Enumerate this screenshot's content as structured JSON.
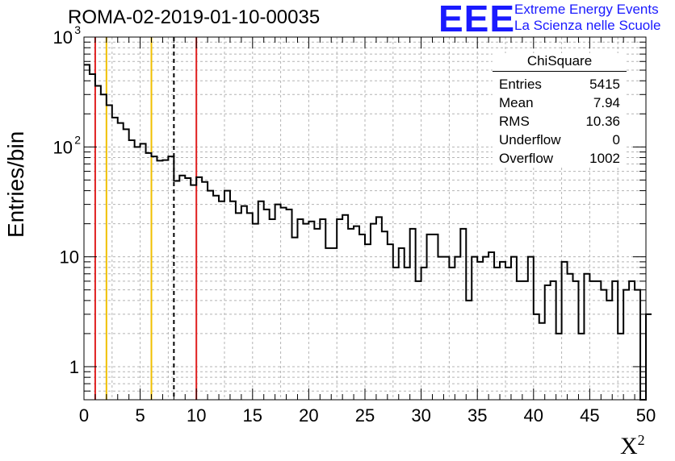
{
  "header": {
    "title": "ROMA-02-2019-01-10-00035",
    "logo_text": "EEE",
    "org_line1": "Extreme Energy Events",
    "org_line2": "La Scienza nelle Scuole"
  },
  "stats_box": {
    "name": "ChiSquare",
    "rows": [
      {
        "label": "Entries",
        "value": "5415"
      },
      {
        "label": "Mean",
        "value": "7.94"
      },
      {
        "label": "RMS",
        "value": "10.36"
      },
      {
        "label": "Underflow",
        "value": "0"
      },
      {
        "label": "Overflow",
        "value": "1002"
      }
    ]
  },
  "chart_data": {
    "type": "bar",
    "histogram": true,
    "title": "ROMA-02-2019-01-10-00035",
    "xlabel": "X",
    "xlabel_superscript": "2",
    "ylabel": "Entries/bin",
    "xlim": [
      0,
      50
    ],
    "ylim": [
      0.5,
      1000
    ],
    "yscale": "log",
    "bin_width": 0.5,
    "grid": true,
    "x_ticks": [
      "0",
      "5",
      "10",
      "15",
      "20",
      "25",
      "30",
      "35",
      "40",
      "45",
      "50"
    ],
    "y_ticks": [
      {
        "value": 1,
        "label": "1"
      },
      {
        "value": 10,
        "label": "10"
      },
      {
        "value": 100,
        "label": "10",
        "sup": "2"
      },
      {
        "value": 1000,
        "label": "10",
        "sup": "3"
      }
    ],
    "values": [
      560,
      460,
      360,
      300,
      240,
      185,
      165,
      145,
      115,
      100,
      107,
      88,
      82,
      75,
      76,
      82,
      49,
      55,
      52,
      45,
      53,
      48,
      40,
      36,
      32,
      40,
      32,
      25,
      29,
      25,
      20,
      32,
      27,
      22,
      30,
      28,
      27,
      15,
      22,
      20,
      21,
      18,
      22,
      12,
      12,
      22,
      24,
      18,
      19,
      16,
      13,
      20,
      23,
      17,
      13,
      8,
      12,
      8,
      18,
      6,
      8,
      16,
      16,
      10,
      10,
      8,
      10,
      18,
      4,
      10,
      9,
      10,
      11,
      8,
      9,
      8,
      10,
      6,
      6,
      10,
      3,
      2.5,
      5.5,
      6,
      2,
      9,
      7,
      6,
      2,
      7,
      6,
      6,
      5,
      4,
      6,
      2,
      5,
      6,
      5,
      0,
      3
    ],
    "vertical_lines": [
      {
        "x": 1,
        "color": "#e02020",
        "style": "solid"
      },
      {
        "x": 2,
        "color": "#f0c000",
        "style": "solid"
      },
      {
        "x": 6,
        "color": "#f0c000",
        "style": "solid"
      },
      {
        "x": 8,
        "color": "#000000",
        "style": "dashed"
      },
      {
        "x": 10,
        "color": "#e02020",
        "style": "solid"
      }
    ],
    "colors": {
      "line": "#000000",
      "grid": "#b4b4b4",
      "brand": "#1a1aff"
    }
  }
}
